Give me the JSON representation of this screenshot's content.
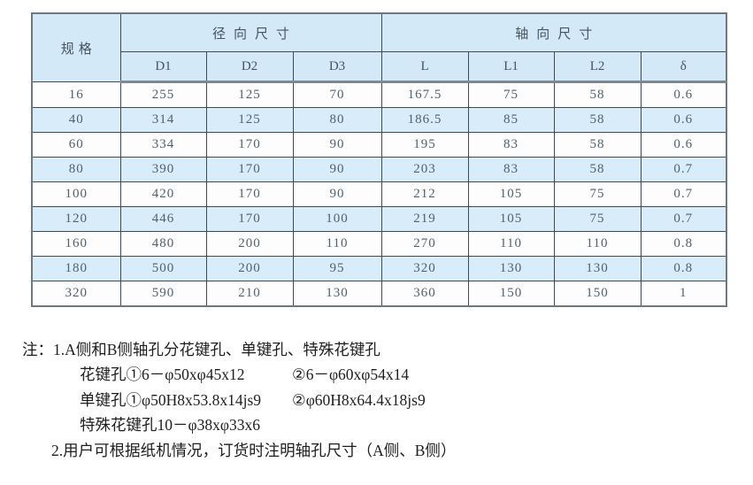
{
  "table": {
    "header": {
      "spec": "规格",
      "radial_group": "径向尺寸",
      "axial_group": "轴向尺寸",
      "columns": [
        "D1",
        "D2",
        "D3",
        "L",
        "L1",
        "L2",
        "δ"
      ]
    },
    "rows": [
      {
        "spec": "16",
        "values": [
          "255",
          "125",
          "70",
          "167.5",
          "75",
          "58",
          "0.6"
        ]
      },
      {
        "spec": "40",
        "values": [
          "314",
          "125",
          "80",
          "186.5",
          "85",
          "58",
          "0.6"
        ]
      },
      {
        "spec": "60",
        "values": [
          "334",
          "170",
          "90",
          "195",
          "83",
          "58",
          "0.6"
        ]
      },
      {
        "spec": "80",
        "values": [
          "390",
          "170",
          "90",
          "203",
          "83",
          "58",
          "0.7"
        ]
      },
      {
        "spec": "100",
        "values": [
          "420",
          "170",
          "90",
          "212",
          "105",
          "75",
          "0.7"
        ]
      },
      {
        "spec": "120",
        "values": [
          "446",
          "170",
          "100",
          "219",
          "105",
          "75",
          "0.7"
        ]
      },
      {
        "spec": "160",
        "values": [
          "480",
          "200",
          "110",
          "270",
          "110",
          "110",
          "0.8"
        ]
      },
      {
        "spec": "180",
        "values": [
          "500",
          "200",
          "95",
          "320",
          "130",
          "130",
          "0.8"
        ]
      },
      {
        "spec": "320",
        "values": [
          "590",
          "210",
          "130",
          "360",
          "150",
          "150",
          "1"
        ]
      }
    ]
  },
  "notes": {
    "label": "注：",
    "line1": "1.A侧和B侧轴孔分花键孔、单键孔、特殊花键孔",
    "line2a": "花键孔①6－φ50xφ45x12",
    "line2b": "②6－φ60xφ54x14",
    "line3a": "单键孔①φ50H8x53.8x14js9",
    "line3b": "②φ60H8x64.4x18js9",
    "line4": "特殊花键孔10－φ38xφ33x6",
    "line5": "2.用户可根据纸机情况，订货时注明轴孔尺寸（A侧、B侧）"
  },
  "colors": {
    "header_bg": "#d3e9f7",
    "row_alt_bg": "#d8edf9",
    "border": "#3f4a52",
    "number_text": "#52606b",
    "note_text": "#1e1e1e"
  }
}
